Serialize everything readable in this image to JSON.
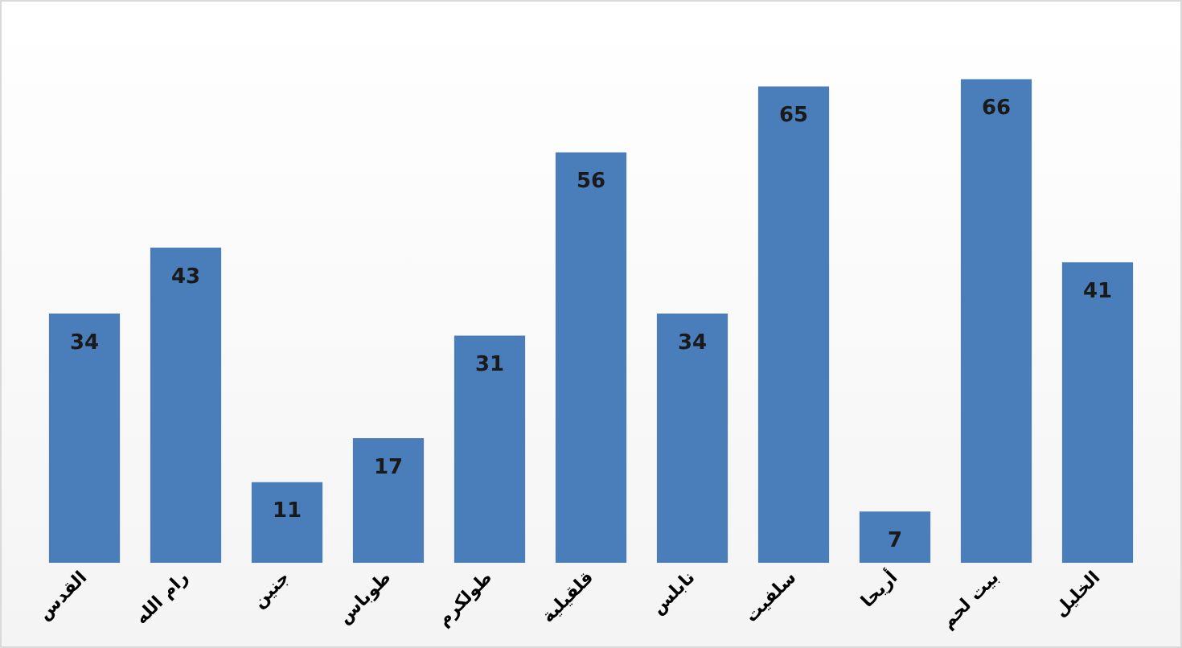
{
  "chart_data": {
    "type": "bar",
    "categories": [
      "القدس",
      "رام الله",
      "جنين",
      "طوباس",
      "طولكرم",
      "قلقيلية",
      "نابلس",
      "سلفيت",
      "أريحا",
      "بيت لحم",
      "الخليل"
    ],
    "values": [
      34,
      43,
      11,
      17,
      31,
      56,
      34,
      65,
      7,
      66,
      41
    ],
    "color": "#4a7ebb",
    "data_labels": true,
    "grid": false,
    "legend": false
  }
}
